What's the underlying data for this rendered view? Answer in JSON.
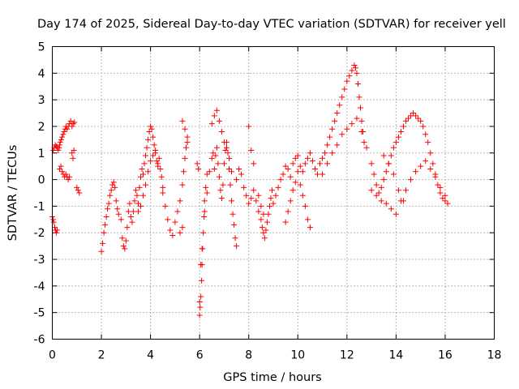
{
  "chart_data": {
    "type": "scatter",
    "title": "Day 174 of 2025, Sidereal Day-to-day VTEC variation (SDTVAR) for receiver yell",
    "xlabel": "GPS time / hours",
    "ylabel": "SDTVAR / TECUs",
    "xlim": [
      0,
      18
    ],
    "ylim": [
      -6,
      5
    ],
    "xticks": [
      0,
      2,
      4,
      6,
      8,
      10,
      12,
      14,
      16,
      18
    ],
    "yticks": [
      -6,
      -5,
      -4,
      -3,
      -2,
      -1,
      0,
      1,
      2,
      3,
      4,
      5
    ],
    "grid": true,
    "marker": "+",
    "series": [
      {
        "name": "SDTVAR",
        "color": "#ff0000",
        "x": [
          0.0,
          0.03,
          0.06,
          0.1,
          0.13,
          0.16,
          0.2,
          0.04,
          0.08,
          0.12,
          0.16,
          0.2,
          0.24,
          0.28,
          0.3,
          0.32,
          0.36,
          0.4,
          0.44,
          0.48,
          0.52,
          0.56,
          0.6,
          0.65,
          0.7,
          0.75,
          0.8,
          0.85,
          0.9,
          0.3,
          0.35,
          0.4,
          0.45,
          0.5,
          0.55,
          0.6,
          0.65,
          0.7,
          0.8,
          0.84,
          0.88,
          1.0,
          1.05,
          1.1,
          2.0,
          2.05,
          2.1,
          2.15,
          2.2,
          2.25,
          2.3,
          2.35,
          2.4,
          2.45,
          2.5,
          2.55,
          2.6,
          2.65,
          2.7,
          2.8,
          2.85,
          2.9,
          2.95,
          3.0,
          3.05,
          3.1,
          3.15,
          3.2,
          3.25,
          3.3,
          3.35,
          3.4,
          3.45,
          3.5,
          3.55,
          3.6,
          3.65,
          3.7,
          3.75,
          3.8,
          3.85,
          3.9,
          3.95,
          4.0,
          4.05,
          4.1,
          4.15,
          4.2,
          4.25,
          4.3,
          4.35,
          4.4,
          4.45,
          4.5,
          3.5,
          3.6,
          3.7,
          3.8,
          3.9,
          4.0,
          4.1,
          4.2,
          4.3,
          4.5,
          4.6,
          4.7,
          4.8,
          4.9,
          5.0,
          5.1,
          5.2,
          5.3,
          5.35,
          5.4,
          5.45,
          5.5,
          5.3,
          5.4,
          5.5,
          5.2,
          5.3,
          5.9,
          5.95,
          6.0,
          6.02,
          6.05,
          6.08,
          6.1,
          6.12,
          6.15,
          6.18,
          6.2,
          6.25,
          6.3,
          6.0,
          6.05,
          6.1,
          6.2,
          6.3,
          6.4,
          6.5,
          6.55,
          6.6,
          6.65,
          6.7,
          6.75,
          6.8,
          6.85,
          6.9,
          6.95,
          7.0,
          7.05,
          7.1,
          7.15,
          7.2,
          7.25,
          7.3,
          7.35,
          7.4,
          7.45,
          7.5,
          6.5,
          6.6,
          6.7,
          6.8,
          6.9,
          7.0,
          7.1,
          7.2,
          7.3,
          7.5,
          7.6,
          7.7,
          7.8,
          7.9,
          8.0,
          8.1,
          8.2,
          8.3,
          8.4,
          8.5,
          8.55,
          8.6,
          8.65,
          8.7,
          8.75,
          8.8,
          8.85,
          8.9,
          8.95,
          8.0,
          8.1,
          8.2,
          8.4,
          8.5,
          8.6,
          9.0,
          9.1,
          9.2,
          9.3,
          9.4,
          9.5,
          9.6,
          9.7,
          9.8,
          9.9,
          10.0,
          10.1,
          10.2,
          10.3,
          10.4,
          10.5,
          10.6,
          10.7,
          10.8,
          10.9,
          9.5,
          9.6,
          9.7,
          9.8,
          9.9,
          10.0,
          10.1,
          10.2,
          10.3,
          10.4,
          10.5,
          11.0,
          11.1,
          11.2,
          11.3,
          11.4,
          11.5,
          11.6,
          11.7,
          11.8,
          11.9,
          12.0,
          12.1,
          12.2,
          12.3,
          12.35,
          12.4,
          12.45,
          12.5,
          12.55,
          12.6,
          12.65,
          12.7,
          11.0,
          11.2,
          11.4,
          11.6,
          11.8,
          12.0,
          12.2,
          12.4,
          12.6,
          12.8,
          13.0,
          13.1,
          13.2,
          13.3,
          13.4,
          13.5,
          13.6,
          13.7,
          13.8,
          13.9,
          14.0,
          14.1,
          14.2,
          14.3,
          14.4,
          14.5,
          14.6,
          14.7,
          14.8,
          14.9,
          15.0,
          15.1,
          15.2,
          15.3,
          15.4,
          15.5,
          15.6,
          15.7,
          15.8,
          15.9,
          16.0,
          16.1,
          13.0,
          13.2,
          13.4,
          13.6,
          13.8,
          14.0,
          14.2,
          14.4,
          14.6,
          14.8,
          15.0,
          15.2,
          15.4,
          15.6,
          15.8,
          16.0,
          13.5,
          13.7,
          13.9,
          14.1,
          14.3
        ],
        "y": [
          -1.4,
          -1.5,
          -1.6,
          -1.8,
          -1.9,
          -2.0,
          -1.9,
          1.1,
          1.2,
          1.3,
          1.25,
          1.2,
          1.1,
          1.2,
          1.3,
          1.4,
          1.5,
          1.6,
          1.7,
          1.8,
          1.9,
          2.0,
          1.9,
          2.0,
          2.1,
          2.2,
          2.0,
          2.1,
          2.15,
          0.4,
          0.5,
          0.3,
          0.2,
          0.1,
          0.2,
          0.1,
          0.0,
          0.1,
          1.0,
          0.8,
          1.1,
          -0.3,
          -0.4,
          -0.5,
          -2.7,
          -2.4,
          -2.0,
          -1.7,
          -1.4,
          -1.1,
          -0.9,
          -0.6,
          -0.4,
          -0.2,
          -0.1,
          -0.3,
          -0.8,
          -1.1,
          -1.3,
          -1.5,
          -2.2,
          -2.5,
          -2.6,
          -2.3,
          -1.8,
          -1.2,
          -0.9,
          -1.4,
          -1.6,
          -1.2,
          -0.8,
          -0.4,
          -0.6,
          -0.9,
          -0.3,
          0.1,
          0.4,
          0.2,
          0.6,
          0.9,
          1.2,
          1.5,
          1.8,
          2.0,
          1.9,
          1.6,
          1.3,
          1.0,
          0.7,
          0.5,
          0.8,
          0.4,
          0.1,
          -0.3,
          -1.2,
          -1.0,
          -0.6,
          -0.2,
          0.3,
          0.7,
          0.9,
          1.1,
          0.6,
          -0.5,
          -1.0,
          -1.5,
          -1.9,
          -2.1,
          -1.6,
          -1.2,
          -0.8,
          -0.2,
          0.3,
          0.8,
          1.2,
          1.6,
          2.2,
          1.9,
          1.4,
          -2.0,
          -1.8,
          0.6,
          0.4,
          -4.6,
          -4.8,
          -4.4,
          -3.8,
          -3.2,
          -2.6,
          -2.0,
          -1.4,
          -0.8,
          -0.3,
          0.2,
          -5.1,
          -3.2,
          -2.6,
          -1.2,
          -0.5,
          0.3,
          0.8,
          1.0,
          0.4,
          0.9,
          1.2,
          0.6,
          0.1,
          -0.4,
          -0.7,
          -0.2,
          0.6,
          1.1,
          1.4,
          1.0,
          0.4,
          -0.2,
          -0.8,
          -1.3,
          -1.7,
          -2.2,
          -2.5,
          2.1,
          2.4,
          2.6,
          2.2,
          1.8,
          1.4,
          1.2,
          0.8,
          0.3,
          0.0,
          0.4,
          0.2,
          -0.3,
          -0.6,
          -0.9,
          -0.7,
          -0.4,
          -0.8,
          -1.2,
          -1.5,
          -1.8,
          -2.0,
          -2.2,
          -1.9,
          -1.6,
          -1.3,
          -1.0,
          -0.7,
          -0.4,
          2.0,
          1.1,
          0.6,
          -0.6,
          -1.0,
          -1.3,
          -0.9,
          -0.6,
          -0.3,
          0.0,
          0.2,
          0.5,
          0.4,
          0.1,
          0.6,
          0.8,
          0.9,
          0.5,
          0.3,
          0.6,
          0.8,
          1.0,
          0.7,
          0.4,
          0.2,
          0.6,
          -1.6,
          -1.2,
          -0.8,
          -0.4,
          -0.1,
          0.3,
          -0.2,
          -0.6,
          -1.0,
          -1.5,
          -1.8,
          0.8,
          1.0,
          1.3,
          1.6,
          1.9,
          2.2,
          2.5,
          2.8,
          3.1,
          3.4,
          3.7,
          3.9,
          4.1,
          4.3,
          4.2,
          4.0,
          3.6,
          3.1,
          2.7,
          2.2,
          1.8,
          1.4,
          0.2,
          0.6,
          1.0,
          1.3,
          1.7,
          1.9,
          2.1,
          2.3,
          1.8,
          1.2,
          0.6,
          0.2,
          -0.2,
          -0.5,
          -0.3,
          0.0,
          0.3,
          0.6,
          0.9,
          1.2,
          1.4,
          1.6,
          1.8,
          2.0,
          2.2,
          2.3,
          2.4,
          2.5,
          2.4,
          2.3,
          2.2,
          2.0,
          1.7,
          1.4,
          1.0,
          0.6,
          0.2,
          -0.2,
          -0.5,
          -0.7,
          -0.8,
          -0.9,
          -0.4,
          -0.6,
          -0.8,
          -0.9,
          -1.1,
          -1.3,
          -0.8,
          -0.4,
          0.0,
          0.3,
          0.5,
          0.7,
          0.4,
          0.1,
          -0.3,
          -0.6,
          0.9,
          0.6,
          0.2,
          -0.4,
          -0.8
        ]
      }
    ]
  }
}
